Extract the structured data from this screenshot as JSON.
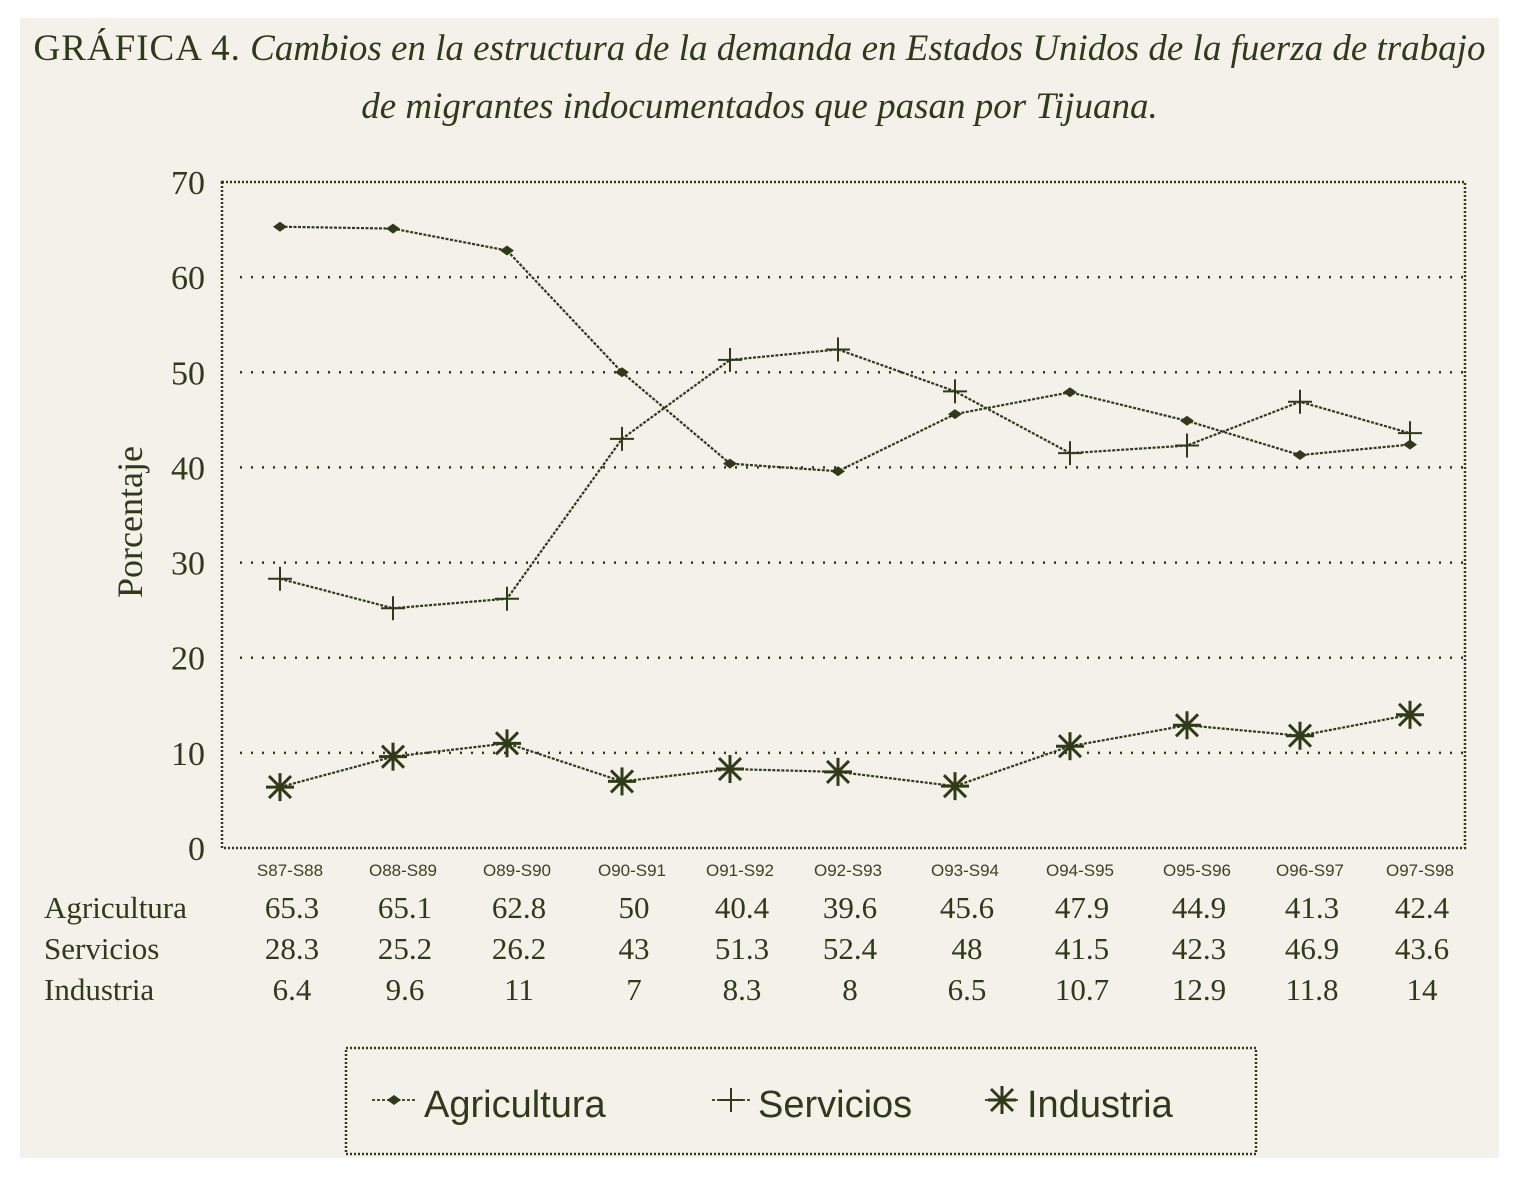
{
  "page": {
    "title_prefix": "GRÁFICA 4.",
    "title_line1": "Cambios en la estructura de la demanda en Estados Unidos de la fuerza de trabajo",
    "title_line2": "de migrantes indocumentados que pasan por Tijuana."
  },
  "colors": {
    "ink": "#2f3a17",
    "paper": "#f3f1ea"
  },
  "chart_data": {
    "type": "line",
    "title": "Cambios en la estructura de la demanda en Estados Unidos de la fuerza de trabajo de migrantes indocumentados que pasan por Tijuana.",
    "xlabel": "",
    "ylabel": "Porcentaje",
    "ylim": [
      0,
      70
    ],
    "yticks": [
      0,
      10,
      20,
      30,
      40,
      50,
      60,
      70
    ],
    "grid": true,
    "legend_position": "bottom",
    "categories": [
      "S87-S88",
      "O88-S89",
      "O89-S90",
      "O90-S91",
      "O91-S92",
      "O92-S93",
      "O93-S94",
      "O94-S95",
      "O95-S96",
      "O96-S97",
      "O97-S98"
    ],
    "series": [
      {
        "name": "Agricultura",
        "marker": "diamond",
        "symbol": "◆",
        "values": [
          65.3,
          65.1,
          62.8,
          50,
          40.4,
          39.6,
          45.6,
          47.9,
          44.9,
          41.3,
          42.4
        ],
        "table_values": [
          "65.3",
          "65.1",
          "62.8",
          "50",
          "40.4",
          "39.6",
          "45.6",
          "47.9",
          "44.9",
          "41.3",
          "42.4"
        ]
      },
      {
        "name": "Servicios",
        "marker": "plus",
        "symbol": "+",
        "values": [
          28.3,
          25.2,
          26.2,
          43,
          51.3,
          52.4,
          48,
          41.5,
          42.3,
          46.9,
          43.6
        ],
        "table_values": [
          "28.3",
          "25.2",
          "26.2",
          "43",
          "51.3",
          "52.4",
          "48",
          "41.5",
          "42.3",
          "46.9",
          "43.6"
        ]
      },
      {
        "name": "Industria",
        "marker": "asterisk",
        "symbol": "✳",
        "values": [
          6.4,
          9.6,
          11,
          7,
          8.3,
          8,
          6.5,
          10.7,
          12.9,
          11.8,
          14
        ],
        "table_values": [
          "6.4",
          "9.6",
          "11",
          "7",
          "8.3",
          "8",
          "6.5",
          "10.7",
          "12.9",
          "11.8",
          "14"
        ]
      }
    ]
  }
}
